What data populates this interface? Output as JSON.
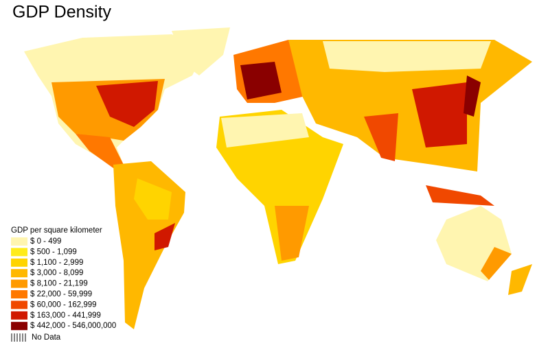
{
  "title": "GDP Density",
  "legend": {
    "title": "GDP per square kilometer",
    "items": [
      {
        "label": "$ 0 - 499",
        "color": "#fff5b0"
      },
      {
        "label": "$ 500 - 1,099",
        "color": "#ffec1a"
      },
      {
        "label": "$ 1,100 - 2,999",
        "color": "#ffd400"
      },
      {
        "label": "$ 3,000 - 8,099",
        "color": "#ffb800"
      },
      {
        "label": "$ 8,100 - 21,199",
        "color": "#ff9a00"
      },
      {
        "label": "$ 22,000 - 59,999",
        "color": "#ff7800"
      },
      {
        "label": "$ 60,000 - 162,999",
        "color": "#f04800"
      },
      {
        "label": "$ 163,000 - 441,999",
        "color": "#d01800"
      },
      {
        "label": "$ 442,000 - 546,000,000",
        "color": "#8a0000"
      }
    ],
    "no_data": "No Data"
  }
}
